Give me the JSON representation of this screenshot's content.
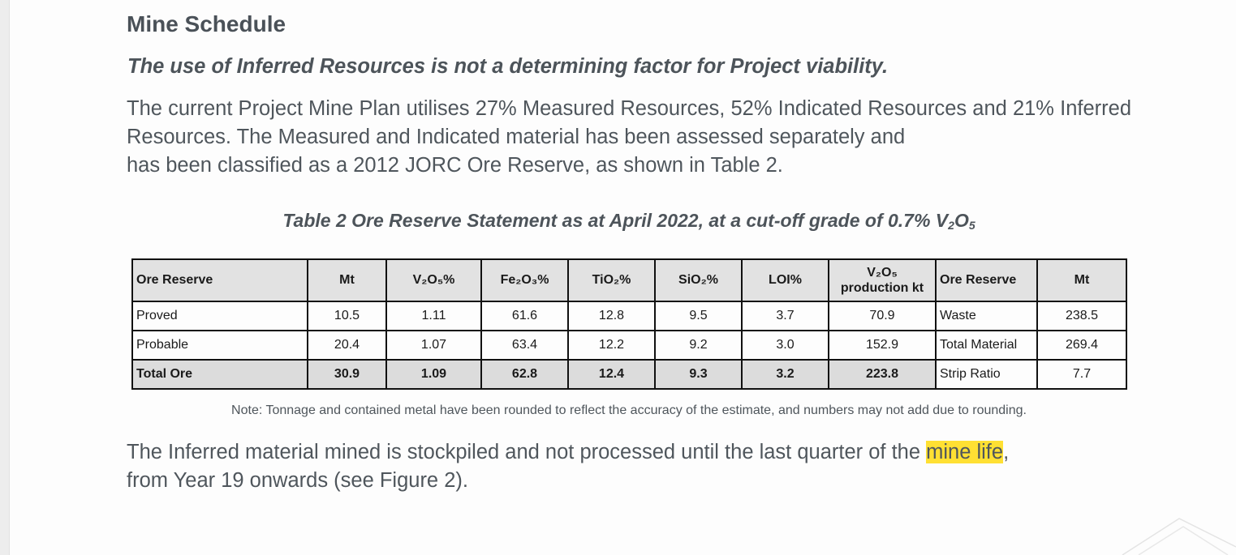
{
  "heading": "Mine Schedule",
  "subheading": "The use of Inferred Resources is not a determining factor for Project viability.",
  "paragraph1": {
    "line1": "The current Project Mine Plan utilises 27% Measured Resources, 52% Indicated Resources and 21% Inferred Resources. The Measured and Indicated material has been assessed separately and",
    "line2": "has been classified as a 2012 JORC Ore Reserve, as shown in Table 2."
  },
  "caption": {
    "prefix": "Table 2 Ore Reserve Statement as at April 2022, at a cut-off grade of 0.7% V",
    "sub1": "2",
    "mid": "O",
    "sub2": "5"
  },
  "table": {
    "headers": {
      "ore_reserve": "Ore Reserve",
      "mt": "Mt",
      "v2o5_pct": "V₂O₅%",
      "fe2o3_pct": "Fe₂O₃%",
      "tio2_pct": "TiO₂%",
      "sio2_pct": "SiO₂%",
      "loi_pct": "LOI%",
      "v2o5_prod_line1": "V₂O₅",
      "v2o5_prod_line2": "production kt",
      "ore_reserve_2": "Ore Reserve",
      "mt_2": "Mt"
    },
    "rows": [
      {
        "name": "Proved",
        "mt": "10.5",
        "v2o5": "1.11",
        "fe2o3": "61.6",
        "tio2": "12.8",
        "sio2": "9.5",
        "loi": "3.7",
        "prod": "70.9",
        "name2": "Waste",
        "mt2": "238.5"
      },
      {
        "name": "Probable",
        "mt": "20.4",
        "v2o5": "1.07",
        "fe2o3": "63.4",
        "tio2": "12.2",
        "sio2": "9.2",
        "loi": "3.0",
        "prod": "152.9",
        "name2": "Total Material",
        "mt2": "269.4"
      },
      {
        "name": "Total Ore",
        "mt": "30.9",
        "v2o5": "1.09",
        "fe2o3": "62.8",
        "tio2": "12.4",
        "sio2": "9.3",
        "loi": "3.2",
        "prod": "223.8",
        "name2": "Strip Ratio",
        "mt2": "7.7"
      }
    ]
  },
  "note": "Note: Tonnage and contained metal have been rounded to reflect the accuracy of the estimate, and numbers may not add due to rounding.",
  "paragraph2": {
    "before": "The Inferred material mined is stockpiled and not processed until the last quarter of the ",
    "highlight": "mine life",
    "after": ",",
    "line2": "from Year 19 onwards (see Figure 2)."
  }
}
